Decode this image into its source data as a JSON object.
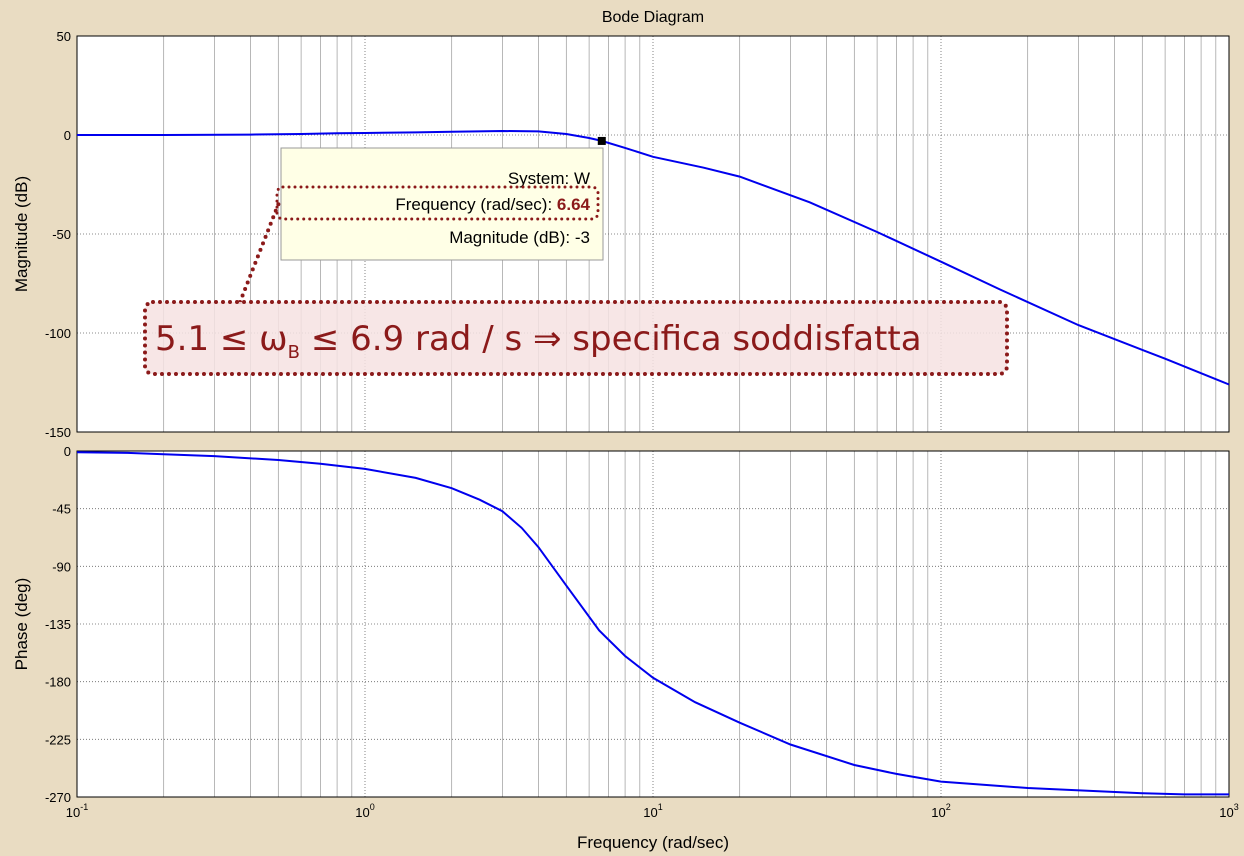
{
  "chart_data": [
    {
      "type": "line",
      "title": "Bode Diagram",
      "ylabel": "Magnitude (dB)",
      "xlog": true,
      "grid": true,
      "xlim": [
        0.1,
        1000
      ],
      "xticks": [
        {
          "value": 0.1,
          "label": "10",
          "exponent": "-1"
        },
        {
          "value": 1,
          "label": "10",
          "exponent": "0"
        },
        {
          "value": 10,
          "label": "10",
          "exponent": "1"
        },
        {
          "value": 100,
          "label": "10",
          "exponent": "2"
        },
        {
          "value": 1000,
          "label": "10",
          "exponent": "3"
        }
      ],
      "ylim": [
        -150,
        50
      ],
      "yticks": [
        50,
        0,
        -50,
        -100,
        -150
      ],
      "x": [
        0.1,
        0.2,
        0.4,
        0.6,
        0.8,
        1,
        1.5,
        2,
        3,
        4,
        5,
        6,
        6.64,
        8,
        10,
        15,
        20,
        35,
        60,
        100,
        160,
        300,
        600,
        1000
      ],
      "series": [
        {
          "name": "W",
          "color": "#0000ee",
          "values": [
            0,
            0,
            0.2,
            0.5,
            0.9,
            1,
            1.3,
            1.6,
            2,
            1.8,
            0.5,
            -1.5,
            -3,
            -6.5,
            -11,
            -16.5,
            -21,
            -34,
            -49,
            -64,
            -78,
            -96,
            -113,
            -126
          ]
        }
      ],
      "datatip": {
        "system": "System: W",
        "freq_label": "Frequency (rad/sec): ",
        "freq": 6.64,
        "mag_label": "Magnitude (dB): ",
        "mag": -3
      },
      "annotation": {
        "pre": "5.1 ≤ ω",
        "sub": "B",
        "post": " ≤ 6.9 rad / s ⇒ specifica soddisfatta"
      }
    },
    {
      "type": "line",
      "ylabel": "Phase (deg)",
      "xlabel": "Frequency  (rad/sec)",
      "xlog": true,
      "grid": true,
      "xlim": [
        0.1,
        1000
      ],
      "xticks": [
        {
          "value": 0.1,
          "label": "10",
          "exponent": "-1"
        },
        {
          "value": 1,
          "label": "10",
          "exponent": "0"
        },
        {
          "value": 10,
          "label": "10",
          "exponent": "1"
        },
        {
          "value": 100,
          "label": "10",
          "exponent": "2"
        },
        {
          "value": 1000,
          "label": "10",
          "exponent": "3"
        }
      ],
      "ylim": [
        -270,
        0
      ],
      "yticks": [
        0,
        -45,
        -90,
        -135,
        -180,
        -225,
        -270
      ],
      "x": [
        0.1,
        0.15,
        0.2,
        0.3,
        0.5,
        0.7,
        1,
        1.5,
        2,
        2.5,
        3,
        3.5,
        4,
        5,
        6.5,
        8,
        10,
        14,
        20,
        30,
        50,
        70,
        100,
        200,
        500,
        700,
        1000
      ],
      "series": [
        {
          "name": "W",
          "color": "#0000ee",
          "values": [
            -1,
            -1.5,
            -2.5,
            -4,
            -7,
            -10,
            -14,
            -21,
            -29,
            -38,
            -47,
            -60,
            -75,
            -105,
            -140,
            -160,
            -177,
            -196,
            -212,
            -229,
            -245,
            -252,
            -258,
            -263,
            -267,
            -268,
            -268
          ]
        }
      ]
    }
  ]
}
